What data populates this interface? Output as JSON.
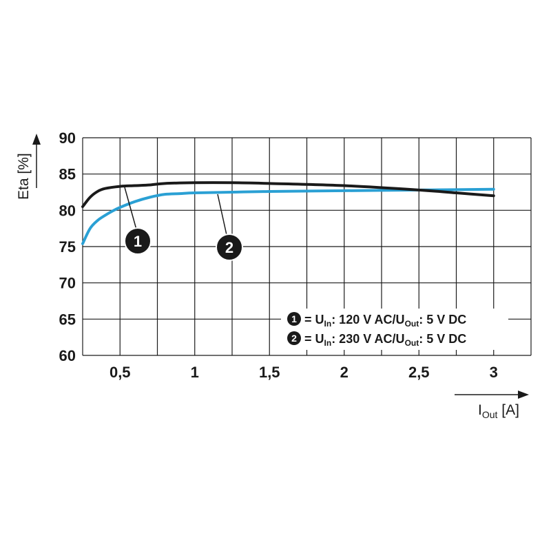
{
  "chart_data": {
    "type": "line",
    "xlabel": {
      "main": "I",
      "sub": "Out",
      "unit": " [A]"
    },
    "ylabel": "Eta [%]",
    "xlim": [
      0.25,
      3.25
    ],
    "ylim": [
      60,
      90
    ],
    "x_ticks": [
      {
        "value": 0.5,
        "label": "0,5"
      },
      {
        "value": 1,
        "label": "1"
      },
      {
        "value": 1.5,
        "label": "1,5"
      },
      {
        "value": 2,
        "label": "2"
      },
      {
        "value": 2.5,
        "label": "2,5"
      },
      {
        "value": 3,
        "label": "3"
      }
    ],
    "y_ticks": [
      {
        "value": 60,
        "label": "60"
      },
      {
        "value": 65,
        "label": "65"
      },
      {
        "value": 70,
        "label": "70"
      },
      {
        "value": 75,
        "label": "75"
      },
      {
        "value": 80,
        "label": "80"
      },
      {
        "value": 85,
        "label": "85"
      },
      {
        "value": 90,
        "label": "90"
      }
    ],
    "grid": true,
    "series": [
      {
        "id": "1",
        "color": "#1a1a1a",
        "x": [
          0.25,
          0.3,
          0.35,
          0.4,
          0.5,
          0.6,
          0.7,
          0.8,
          1.0,
          1.25,
          1.5,
          2.0,
          2.5,
          2.75,
          3.0
        ],
        "y": [
          80.5,
          81.8,
          82.6,
          83.0,
          83.3,
          83.4,
          83.5,
          83.7,
          83.8,
          83.8,
          83.7,
          83.4,
          82.8,
          82.4,
          82.0
        ]
      },
      {
        "id": "2",
        "color": "#2aa0d4",
        "x": [
          0.25,
          0.3,
          0.35,
          0.4,
          0.45,
          0.5,
          0.6,
          0.7,
          0.8,
          0.9,
          1.0,
          1.25,
          1.5,
          2.0,
          2.5,
          3.0
        ],
        "y": [
          75.4,
          77.5,
          78.6,
          79.3,
          79.9,
          80.4,
          81.2,
          81.8,
          82.2,
          82.3,
          82.4,
          82.5,
          82.6,
          82.7,
          82.8,
          82.9
        ]
      }
    ],
    "callouts": [
      {
        "label": "1",
        "series": "1"
      },
      {
        "label": "2",
        "series": "2"
      }
    ],
    "legend": {
      "placement": "bottom-right",
      "items": [
        {
          "label": "1",
          "eq": "= U",
          "in_sub": "In",
          "mid": ": 120 V AC/U",
          "out_sub": "Out",
          "end": ": 5 V DC"
        },
        {
          "label": "2",
          "eq": "= U",
          "in_sub": "In",
          "mid": ": 230 V AC/U",
          "out_sub": "Out",
          "end": ": 5 V DC"
        }
      ]
    }
  }
}
